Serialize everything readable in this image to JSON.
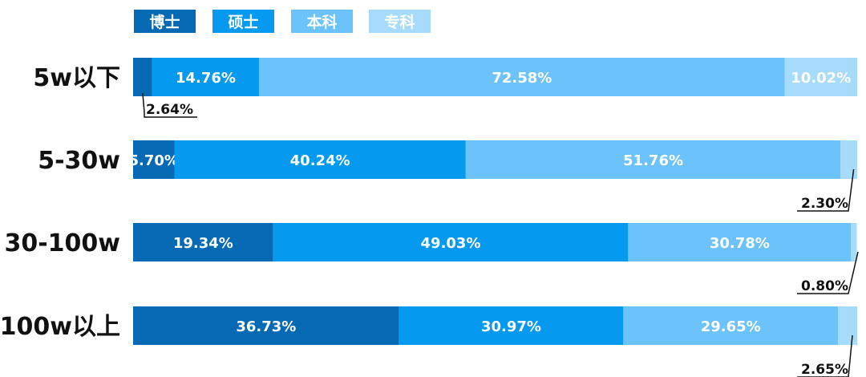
{
  "legend": [
    {
      "label": "博士",
      "color": "#0569b4"
    },
    {
      "label": "硕士",
      "color": "#0599f0"
    },
    {
      "label": "本科",
      "color": "#6cc3fb"
    },
    {
      "label": "专科",
      "color": "#a7dbfb"
    }
  ],
  "chart_data": {
    "type": "bar",
    "orientation": "horizontal",
    "stacked": true,
    "normalized_percent": true,
    "categories": [
      "5w以下",
      "5-30w",
      "30-100w",
      "100w以上"
    ],
    "series": [
      {
        "name": "博士",
        "color": "#0569b4",
        "values": [
          2.64,
          5.7,
          19.34,
          36.73
        ]
      },
      {
        "name": "硕士",
        "color": "#0599f0",
        "values": [
          14.76,
          40.24,
          49.03,
          30.97
        ]
      },
      {
        "name": "本科",
        "color": "#6cc3fb",
        "values": [
          72.58,
          51.76,
          30.78,
          29.65
        ]
      },
      {
        "name": "专科",
        "color": "#a7dbfb",
        "values": [
          10.02,
          2.3,
          0.8,
          2.65
        ]
      }
    ],
    "data_labels": [
      [
        "2.64%",
        "14.76%",
        "72.58%",
        "10.02%"
      ],
      [
        "5.70%",
        "40.24%",
        "51.76%",
        "2.30%"
      ],
      [
        "19.34%",
        "49.03%",
        "30.78%",
        "0.80%"
      ],
      [
        "36.73%",
        "30.97%",
        "29.65%",
        "2.65%"
      ]
    ],
    "callouts": [
      {
        "category_index": 0,
        "series_index": 0,
        "position": "below-left"
      },
      {
        "category_index": 1,
        "series_index": 3,
        "position": "below-right"
      },
      {
        "category_index": 2,
        "series_index": 3,
        "position": "below-right"
      },
      {
        "category_index": 3,
        "series_index": 3,
        "position": "below-right"
      }
    ],
    "legend_position": "top-left",
    "grid": false,
    "xlim": [
      0,
      100
    ]
  }
}
